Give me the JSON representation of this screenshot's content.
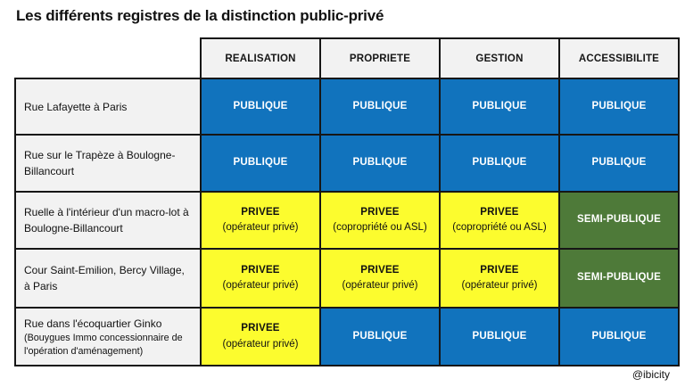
{
  "title": "Les différents registres de la distinction public-privé",
  "watermark": "@ibicity",
  "colors": {
    "publique_bg": "#1173BD",
    "privee_bg": "#FCFC2E",
    "semi_publique_bg": "#4E7A39",
    "header_bg": "#F2F2F2",
    "row_label_bg": "#F2F2F2",
    "border": "#161616",
    "publique_text": "#FFFFFF",
    "privee_text": "#111111"
  },
  "table": {
    "columns": [
      "REALISATION",
      "PROPRIETE",
      "GESTION",
      "ACCESSIBILITE"
    ],
    "rows": [
      {
        "label": "Rue Lafayette à Paris",
        "note": "",
        "cells": [
          {
            "type": "publique",
            "line1": "PUBLIQUE",
            "line2": ""
          },
          {
            "type": "publique",
            "line1": "PUBLIQUE",
            "line2": ""
          },
          {
            "type": "publique",
            "line1": "PUBLIQUE",
            "line2": ""
          },
          {
            "type": "publique",
            "line1": "PUBLIQUE",
            "line2": ""
          }
        ]
      },
      {
        "label": "Rue sur le Trapèze à Boulogne-Billancourt",
        "note": "",
        "cells": [
          {
            "type": "publique",
            "line1": "PUBLIQUE",
            "line2": ""
          },
          {
            "type": "publique",
            "line1": "PUBLIQUE",
            "line2": ""
          },
          {
            "type": "publique",
            "line1": "PUBLIQUE",
            "line2": ""
          },
          {
            "type": "publique",
            "line1": "PUBLIQUE",
            "line2": ""
          }
        ]
      },
      {
        "label": "Ruelle à l'intérieur d'un macro-lot à Boulogne-Billancourt",
        "note": "",
        "cells": [
          {
            "type": "privee",
            "line1": "PRIVEE",
            "line2": "(opérateur privé)"
          },
          {
            "type": "privee",
            "line1": "PRIVEE",
            "line2": "(copropriété ou ASL)"
          },
          {
            "type": "privee",
            "line1": "PRIVEE",
            "line2": "(copropriété ou ASL)"
          },
          {
            "type": "semi",
            "line1": "SEMI-PUBLIQUE",
            "line2": ""
          }
        ]
      },
      {
        "label": "Cour Saint-Emilion, Bercy Village, à Paris",
        "note": "",
        "cells": [
          {
            "type": "privee",
            "line1": "PRIVEE",
            "line2": "(opérateur privé)"
          },
          {
            "type": "privee",
            "line1": "PRIVEE",
            "line2": "(opérateur privé)"
          },
          {
            "type": "privee",
            "line1": "PRIVEE",
            "line2": "(opérateur privé)"
          },
          {
            "type": "semi",
            "line1": "SEMI-PUBLIQUE",
            "line2": ""
          }
        ]
      },
      {
        "label": "Rue dans l'écoquartier Ginko",
        "note": "(Bouygues Immo concessionnaire de l'opération d'aménagement)",
        "cells": [
          {
            "type": "privee",
            "line1": "PRIVEE",
            "line2": "(opérateur privé)"
          },
          {
            "type": "publique",
            "line1": "PUBLIQUE",
            "line2": ""
          },
          {
            "type": "publique",
            "line1": "PUBLIQUE",
            "line2": ""
          },
          {
            "type": "publique",
            "line1": "PUBLIQUE",
            "line2": ""
          }
        ]
      }
    ]
  }
}
